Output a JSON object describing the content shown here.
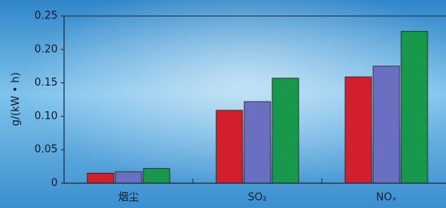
{
  "chart_data": {
    "type": "bar",
    "y_label": "g/(kW • h)",
    "categories": [
      "烟尘",
      "SO₂",
      "NOₓ"
    ],
    "series": [
      {
        "color": "#d21f2b",
        "values": [
          0.015,
          0.109,
          0.159
        ]
      },
      {
        "color": "#6b6fc2",
        "values": [
          0.017,
          0.122,
          0.175
        ]
      },
      {
        "color": "#17984a",
        "values": [
          0.022,
          0.157,
          0.227
        ]
      }
    ],
    "ylim": [
      0,
      0.25
    ],
    "yticks": [
      0,
      0.05,
      {
        "value": 0.1,
        "label": "0.10"
      },
      0.15,
      {
        "value": 0.2,
        "label": "0.20"
      },
      0.25
    ]
  }
}
